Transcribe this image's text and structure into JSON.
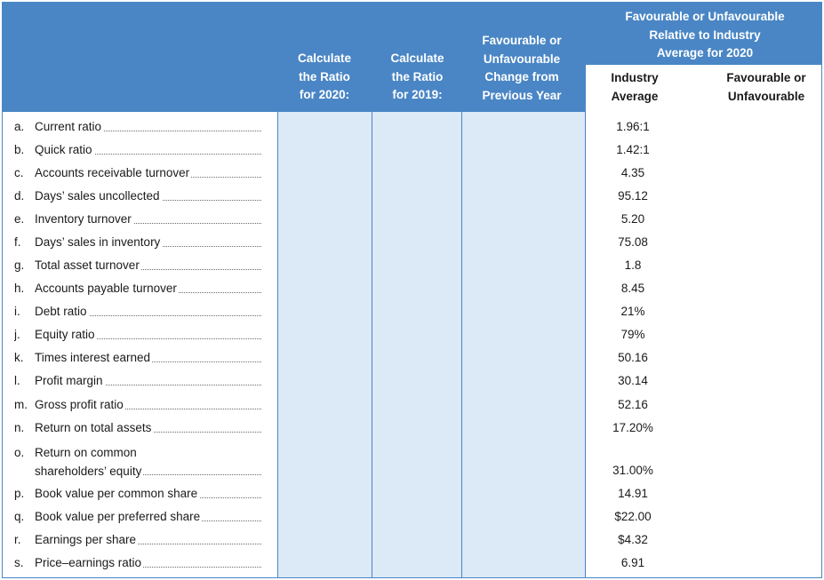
{
  "header": {
    "col_ratio_2020": [
      "Calculate",
      "the Ratio",
      "for 2020:"
    ],
    "col_ratio_2019": [
      "Calculate",
      "the Ratio",
      "for 2019:"
    ],
    "col_change": [
      "Favourable or",
      "Unfavourable",
      "Change from",
      "Previous Year"
    ],
    "col_group": [
      "Favourable or Unfavourable",
      "Relative to Industry",
      "Average for 2020"
    ],
    "col_industry_avg": [
      "Industry",
      "Average"
    ],
    "col_fav_unfav": [
      "Favourable or",
      "Unfavourable"
    ]
  },
  "rows": [
    {
      "letter": "a.",
      "label": "Current ratio",
      "industry": "1.96:1"
    },
    {
      "letter": "b.",
      "label": "Quick ratio",
      "industry": "1.42:1"
    },
    {
      "letter": "c.",
      "label": "Accounts receivable turnover",
      "industry": "4.35"
    },
    {
      "letter": "d.",
      "label": "Days’ sales uncollected",
      "industry": "95.12"
    },
    {
      "letter": "e.",
      "label": "Inventory turnover",
      "industry": "5.20"
    },
    {
      "letter": "f.",
      "label": "Days’ sales in inventory",
      "industry": "75.08"
    },
    {
      "letter": "g.",
      "label": "Total asset turnover",
      "industry": "1.8"
    },
    {
      "letter": "h.",
      "label": "Accounts payable turnover",
      "industry": "8.45"
    },
    {
      "letter": "i.",
      "label": "Debt ratio",
      "industry": "21%"
    },
    {
      "letter": "j.",
      "label": "Equity ratio",
      "industry": "79%"
    },
    {
      "letter": "k.",
      "label": "Times interest earned",
      "industry": "50.16"
    },
    {
      "letter": "l.",
      "label": "Profit margin",
      "industry": "30.14"
    },
    {
      "letter": "m.",
      "label": "Gross profit ratio",
      "industry": "52.16"
    },
    {
      "letter": "n.",
      "label": "Return on total assets",
      "industry": "17.20%"
    },
    {
      "letter": "o.",
      "label_line1": "Return on common",
      "label_line2": "shareholders’ equity",
      "industry": "31.00%"
    },
    {
      "letter": "p.",
      "label": "Book value per common share",
      "industry": "14.91"
    },
    {
      "letter": "q.",
      "label": "Book value per preferred share",
      "industry": "$22.00"
    },
    {
      "letter": "r.",
      "label": "Earnings per share",
      "industry": "$4.32"
    },
    {
      "letter": "s.",
      "label": "Price–earnings ratio",
      "industry": "6.91"
    }
  ]
}
